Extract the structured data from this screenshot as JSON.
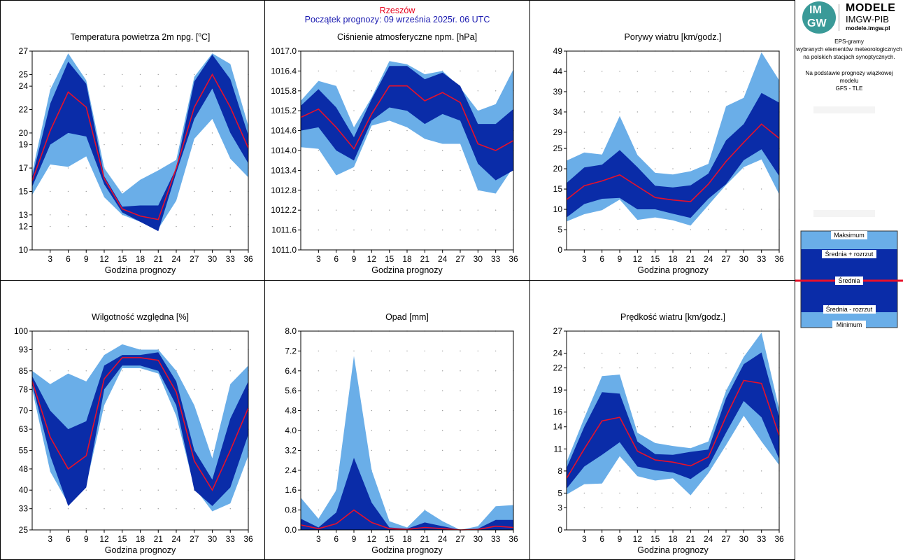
{
  "header": {
    "station": "Rzeszów",
    "forecast_start": "Początek prognozy: 09 września 2025r. 06 UTC"
  },
  "logo": {
    "mark_top": "IM",
    "mark_bottom": "GW",
    "title": "MODELE",
    "subtitle": "IMGW-PIB",
    "url": "modele.imgw.pl",
    "circle_color": "#3a9a98"
  },
  "info": {
    "line1": "EPS-gramy",
    "line2": "wybranych elementów meteorologicznych",
    "line3": "na polskich stacjach  synoptycznych.",
    "line4": "Na podstawie prognozy wiązkowej modelu",
    "line5": "GFS - TLE"
  },
  "legend": {
    "max": "Maksimum",
    "mean_plus": "Średnia + rozrzut",
    "mean": "Średnia",
    "mean_minus": "Średnia - rozrzut",
    "min": "Minimum"
  },
  "colors": {
    "outer_band": "#6aaee8",
    "inner_band": "#0a2ca8",
    "mean_line": "#e8102a",
    "grid_dot": "#9a9a9a",
    "border": "#000000"
  },
  "chart_data": [
    {
      "type": "area",
      "title": "Temperatura powietrza 2m npg. [°C]",
      "xlabel": "Godzina prognozy",
      "x": [
        0,
        3,
        6,
        9,
        12,
        15,
        18,
        21,
        24,
        27,
        30,
        33,
        36
      ],
      "xticks": [
        3,
        6,
        9,
        12,
        15,
        18,
        21,
        24,
        27,
        30,
        33,
        36
      ],
      "yticks": [
        10,
        12,
        13,
        15,
        17,
        19,
        20,
        22,
        24,
        25,
        27
      ],
      "ylim": [
        10,
        27
      ],
      "min": [
        14.7,
        17.3,
        17.1,
        18.0,
        14.5,
        13.0,
        12.4,
        11.8,
        14.2,
        19.5,
        21.2,
        17.8,
        16.2
      ],
      "mean_minus": [
        15.4,
        19.0,
        20.0,
        19.7,
        15.6,
        13.2,
        12.4,
        11.6,
        16.6,
        21.2,
        23.8,
        20.0,
        17.4
      ],
      "mean": [
        15.9,
        20.2,
        23.5,
        22.2,
        16.1,
        13.5,
        12.9,
        12.6,
        17.0,
        22.2,
        25.0,
        22.2,
        18.7
      ],
      "mean_plus": [
        16.2,
        22.5,
        26.1,
        24.2,
        16.3,
        13.7,
        13.8,
        13.8,
        17.0,
        24.4,
        26.7,
        24.6,
        19.8
      ],
      "max": [
        16.6,
        23.7,
        26.8,
        24.5,
        17.0,
        14.8,
        16.0,
        16.8,
        17.7,
        24.8,
        26.8,
        25.9,
        20.6
      ]
    },
    {
      "type": "area",
      "title": "Ciśnienie atmosferyczne npm. [hPa]",
      "xlabel": "Godzina prognozy",
      "x": [
        0,
        3,
        6,
        9,
        12,
        15,
        18,
        21,
        24,
        27,
        30,
        33,
        36
      ],
      "xticks": [
        3,
        6,
        9,
        12,
        15,
        18,
        21,
        24,
        27,
        30,
        33,
        36
      ],
      "yticks": [
        1011.0,
        1011.6,
        1012.2,
        1012.8,
        1013.4,
        1014.0,
        1014.6,
        1015.2,
        1015.8,
        1016.4,
        1017.0
      ],
      "ylim": [
        1011.0,
        1017.0
      ],
      "min": [
        1014.1,
        1014.05,
        1013.25,
        1013.5,
        1014.75,
        1014.9,
        1014.7,
        1014.35,
        1014.2,
        1014.2,
        1012.8,
        1012.7,
        1013.5
      ],
      "mean_minus": [
        1014.6,
        1014.7,
        1014.0,
        1013.7,
        1014.9,
        1015.3,
        1015.2,
        1014.8,
        1015.1,
        1014.9,
        1013.6,
        1013.1,
        1013.4
      ],
      "mean": [
        1015.0,
        1015.25,
        1014.7,
        1014.05,
        1015.1,
        1015.95,
        1015.95,
        1015.5,
        1015.75,
        1015.45,
        1014.2,
        1014.0,
        1014.3
      ],
      "mean_plus": [
        1015.35,
        1015.85,
        1015.3,
        1014.4,
        1015.55,
        1016.55,
        1016.55,
        1016.15,
        1016.35,
        1015.95,
        1014.8,
        1014.8,
        1015.25
      ],
      "max": [
        1015.5,
        1016.1,
        1015.95,
        1014.7,
        1015.6,
        1016.7,
        1016.6,
        1016.3,
        1016.4,
        1015.9,
        1015.2,
        1015.4,
        1016.45
      ]
    },
    {
      "type": "area",
      "title": "Porywy wiatru [km/godz.]",
      "xlabel": "Godzina prognozy",
      "x": [
        0,
        3,
        6,
        9,
        12,
        15,
        18,
        21,
        24,
        27,
        30,
        33,
        36
      ],
      "xticks": [
        3,
        6,
        9,
        12,
        15,
        18,
        21,
        24,
        27,
        30,
        33,
        36
      ],
      "yticks": [
        0,
        5,
        10,
        15,
        20,
        25,
        29,
        34,
        39,
        44,
        49
      ],
      "ylim": [
        0,
        49
      ],
      "min": [
        7.0,
        8.8,
        9.8,
        12.4,
        7.4,
        8.0,
        7.3,
        6.0,
        11.0,
        16.0,
        20.4,
        22.3,
        13.7
      ],
      "mean_minus": [
        8.0,
        11.3,
        12.6,
        12.8,
        10.0,
        10.0,
        8.9,
        7.9,
        12.6,
        16.2,
        22.1,
        24.8,
        18.2
      ],
      "mean": [
        12.4,
        15.8,
        17.0,
        18.5,
        15.7,
        12.9,
        12.3,
        11.9,
        16.2,
        21.8,
        26.5,
        31.0,
        27.5
      ],
      "mean_plus": [
        16.5,
        20.3,
        21.0,
        24.6,
        20.4,
        15.8,
        15.4,
        15.9,
        18.8,
        27.0,
        31.0,
        38.7,
        36.3
      ],
      "max": [
        22.0,
        24.0,
        23.5,
        33.0,
        23.4,
        19.0,
        18.6,
        19.4,
        21.2,
        35.4,
        37.5,
        48.7,
        41.8
      ]
    },
    {
      "type": "area",
      "title": "Wilgotność względna [%]",
      "xlabel": "Godzina prognozy",
      "x": [
        0,
        3,
        6,
        9,
        12,
        15,
        18,
        21,
        24,
        27,
        30,
        33,
        36
      ],
      "xticks": [
        3,
        6,
        9,
        12,
        15,
        18,
        21,
        24,
        27,
        30,
        33,
        36
      ],
      "yticks": [
        25,
        33,
        40,
        48,
        55,
        63,
        70,
        78,
        85,
        93,
        100
      ],
      "ylim": [
        25,
        100
      ],
      "min": [
        78.0,
        47.0,
        35.0,
        42.0,
        72.0,
        86.0,
        86.0,
        84.0,
        68.0,
        41.0,
        32.0,
        35.0,
        53.0
      ],
      "mean_minus": [
        80.0,
        53.0,
        34.0,
        41.0,
        78.0,
        87.0,
        87.0,
        85.0,
        72.0,
        40.0,
        34.0,
        41.0,
        61.0
      ],
      "mean": [
        81.0,
        60.0,
        48.0,
        53.0,
        82.0,
        90.0,
        90.0,
        89.0,
        77.0,
        51.0,
        40.0,
        55.0,
        71.0
      ],
      "mean_plus": [
        83.0,
        70.0,
        63.0,
        66.0,
        87.0,
        91.0,
        91.0,
        92.0,
        81.0,
        55.0,
        44.0,
        67.0,
        81.0
      ],
      "max": [
        85.0,
        80.0,
        84.0,
        81.0,
        91.0,
        95.0,
        93.0,
        93.0,
        85.0,
        72.0,
        52.0,
        80.0,
        87.0
      ]
    },
    {
      "type": "area",
      "title": "Opad [mm]",
      "xlabel": "Godzina prognozy",
      "x": [
        0,
        3,
        6,
        9,
        12,
        15,
        18,
        21,
        24,
        27,
        30,
        33,
        36
      ],
      "xticks": [
        3,
        6,
        9,
        12,
        15,
        18,
        21,
        24,
        27,
        30,
        33,
        36
      ],
      "yticks": [
        0.0,
        0.8,
        1.6,
        2.4,
        3.2,
        4.0,
        4.8,
        5.6,
        6.4,
        7.2,
        8.0
      ],
      "ylim": [
        0.0,
        8.0
      ],
      "min": [
        0.0,
        0.0,
        0.0,
        0.0,
        0.0,
        0.0,
        0.0,
        0.0,
        0.0,
        0.0,
        0.0,
        0.0,
        0.0
      ],
      "mean_minus": [
        0.0,
        0.0,
        0.0,
        0.0,
        0.0,
        0.0,
        0.0,
        0.0,
        0.0,
        0.0,
        0.0,
        0.0,
        0.0
      ],
      "mean": [
        0.2,
        0.05,
        0.25,
        0.8,
        0.3,
        0.05,
        0.02,
        0.1,
        0.05,
        0.0,
        0.02,
        0.15,
        0.1
      ],
      "mean_plus": [
        0.45,
        0.1,
        0.7,
        2.9,
        1.1,
        0.1,
        0.05,
        0.3,
        0.15,
        0.0,
        0.05,
        0.4,
        0.4
      ],
      "max": [
        1.3,
        0.45,
        1.6,
        7.0,
        2.4,
        0.35,
        0.1,
        0.8,
        0.35,
        0.0,
        0.15,
        0.95,
        1.0
      ]
    },
    {
      "type": "area",
      "title": "Prędkość wiatru [km/godz.]",
      "xlabel": "Godzina prognozy",
      "x": [
        0,
        3,
        6,
        9,
        12,
        15,
        18,
        21,
        24,
        27,
        30,
        33,
        36
      ],
      "xticks": [
        3,
        6,
        9,
        12,
        15,
        18,
        21,
        24,
        27,
        30,
        33,
        36
      ],
      "yticks": [
        0,
        3,
        5,
        8,
        11,
        14,
        16,
        19,
        22,
        24,
        27
      ],
      "ylim": [
        0,
        27
      ],
      "min": [
        4.8,
        6.2,
        6.3,
        10.0,
        7.3,
        6.7,
        7.0,
        4.7,
        7.7,
        11.5,
        15.5,
        12.0,
        8.8
      ],
      "mean_minus": [
        5.6,
        8.6,
        10.2,
        11.9,
        8.6,
        8.1,
        7.8,
        6.9,
        8.6,
        13.2,
        17.5,
        15.3,
        9.6
      ],
      "mean": [
        7.0,
        11.0,
        14.8,
        15.3,
        10.7,
        9.5,
        9.2,
        8.7,
        9.9,
        15.4,
        20.3,
        19.9,
        12.8
      ],
      "mean_plus": [
        8.4,
        14.0,
        18.7,
        18.5,
        12.0,
        10.3,
        10.2,
        10.6,
        10.9,
        17.9,
        22.5,
        24.1,
        15.3
      ],
      "max": [
        9.2,
        15.2,
        20.9,
        21.1,
        13.2,
        11.8,
        11.4,
        11.1,
        12.0,
        18.9,
        23.5,
        26.8,
        16.4
      ]
    }
  ]
}
